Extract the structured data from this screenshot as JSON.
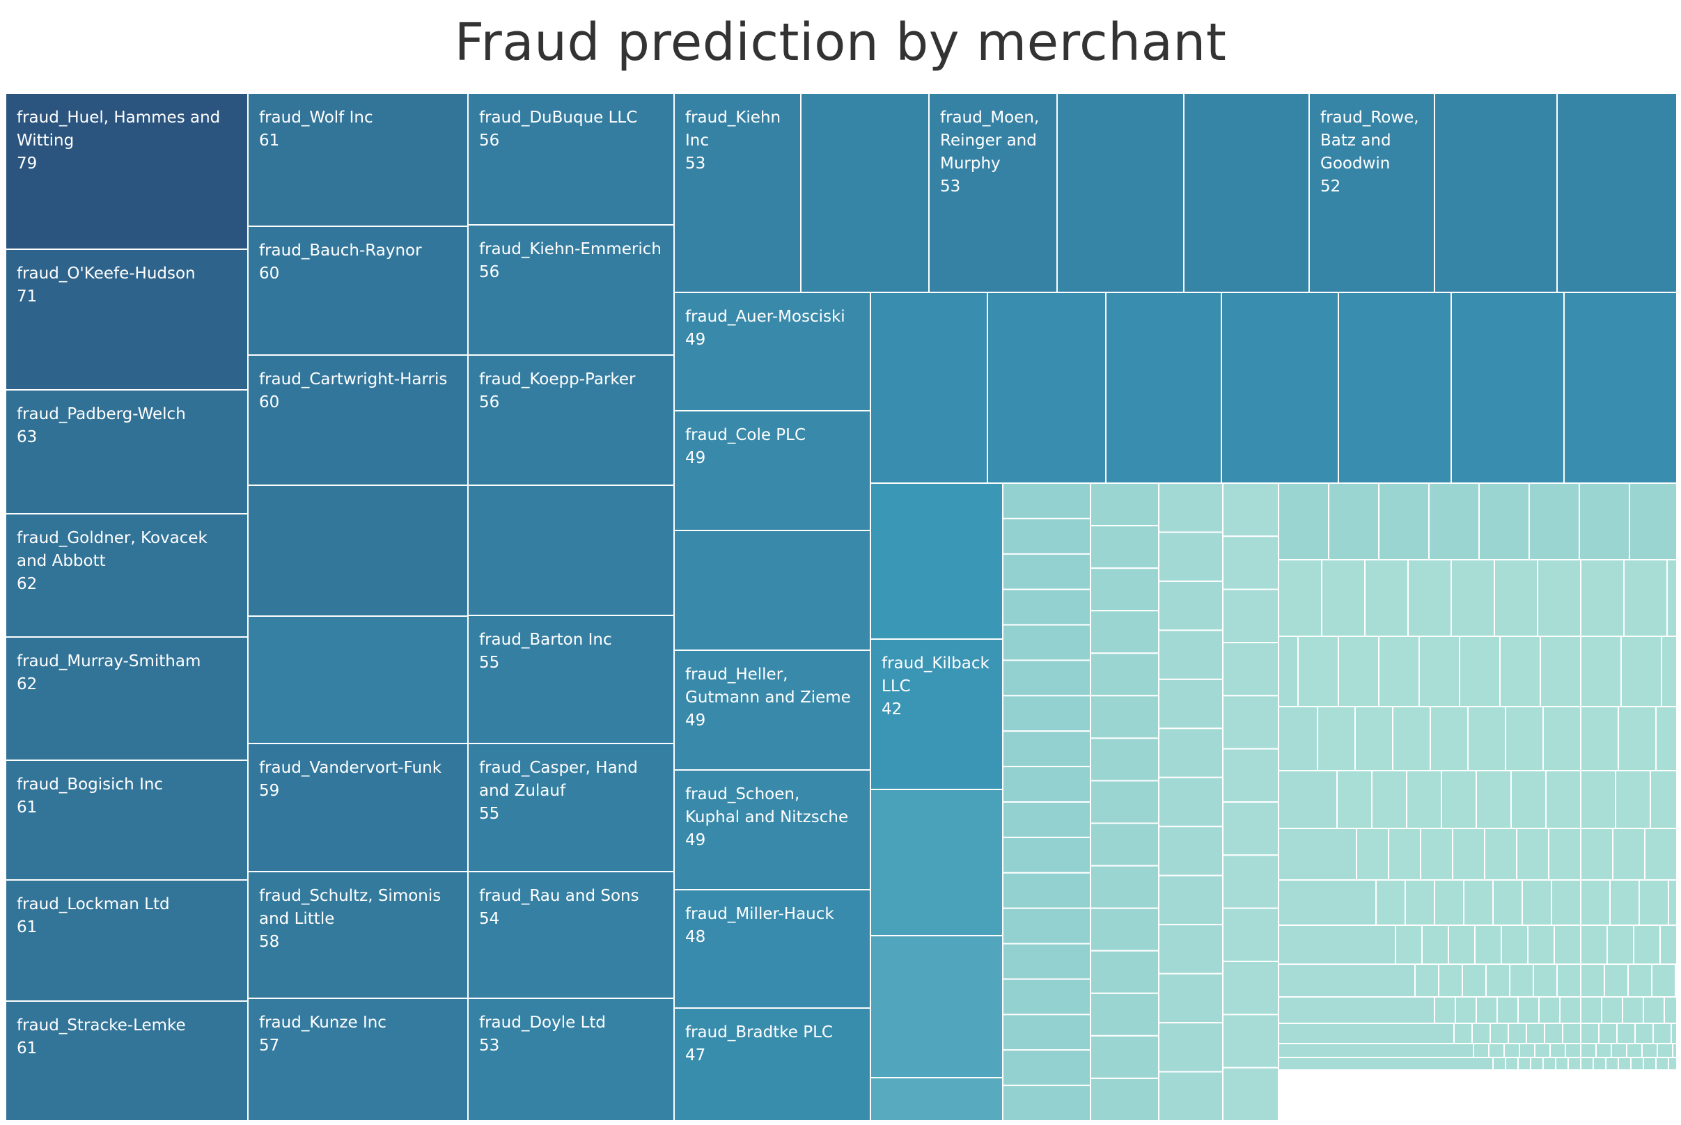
{
  "title": "Fraud prediction by merchant",
  "colors": {
    "dark": "#2b557f",
    "mid": "#3b97b6",
    "light": "#a9ded6",
    "border": "#ffffff"
  },
  "chart_data": {
    "type": "treemap",
    "title": "Fraud prediction by merchant",
    "labeled_values": [
      {
        "name": "fraud_Huel, Hammes and Witting",
        "value": 79
      },
      {
        "name": "fraud_O'Keefe-Hudson",
        "value": 71
      },
      {
        "name": "fraud_Padberg-Welch",
        "value": 63
      },
      {
        "name": "fraud_Goldner, Kovacek and Abbott",
        "value": 62
      },
      {
        "name": "fraud_Murray-Smitham",
        "value": 62
      },
      {
        "name": "fraud_Bogisich Inc",
        "value": 61
      },
      {
        "name": "fraud_Lockman Ltd",
        "value": 61
      },
      {
        "name": "fraud_Stracke-Lemke",
        "value": 61
      },
      {
        "name": "fraud_Wolf Inc",
        "value": 61
      },
      {
        "name": "fraud_Bauch-Raynor",
        "value": 60
      },
      {
        "name": "fraud_Cartwright-Harris",
        "value": 60
      },
      {
        "name": "fraud_Vandervort-Funk",
        "value": 59
      },
      {
        "name": "fraud_Schultz, Simonis and Little",
        "value": 58
      },
      {
        "name": "fraud_Kunze Inc",
        "value": 57
      },
      {
        "name": "fraud_DuBuque LLC",
        "value": 56
      },
      {
        "name": "fraud_Kiehn-Emmerich",
        "value": 56
      },
      {
        "name": "fraud_Koepp-Parker",
        "value": 56
      },
      {
        "name": "fraud_Barton Inc",
        "value": 55
      },
      {
        "name": "fraud_Casper, Hand and Zulauf",
        "value": 55
      },
      {
        "name": "fraud_Rau and Sons",
        "value": 54
      },
      {
        "name": "fraud_Doyle Ltd",
        "value": 53
      },
      {
        "name": "fraud_Kiehn Inc",
        "value": 53
      },
      {
        "name": "fraud_Moen, Reinger and Murphy",
        "value": 53
      },
      {
        "name": "fraud_Rowe, Batz and Goodwin",
        "value": 52
      },
      {
        "name": "fraud_Auer-Mosciski",
        "value": 49
      },
      {
        "name": "fraud_Cole PLC",
        "value": 49
      },
      {
        "name": "fraud_Heller, Gutmann and Zieme",
        "value": 49
      },
      {
        "name": "fraud_Schoen, Kuphal and Nitzsche",
        "value": 49
      },
      {
        "name": "fraud_Miller-Hauck",
        "value": 48
      },
      {
        "name": "fraud_Bradtke PLC",
        "value": 47
      },
      {
        "name": "fraud_Kilback LLC",
        "value": 42
      }
    ],
    "value_range": [
      0,
      79
    ],
    "legend": "none"
  }
}
